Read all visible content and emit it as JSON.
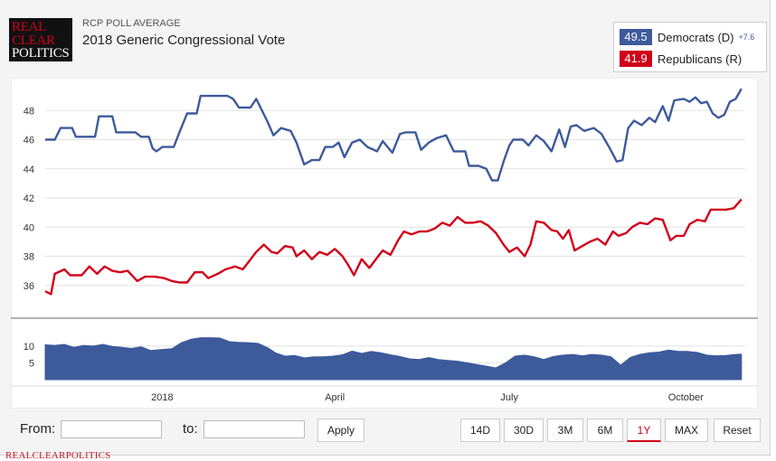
{
  "header": {
    "logo_lines": [
      "REAL",
      "CLEAR",
      "POLITICS"
    ],
    "subtitle": "RCP POLL AVERAGE",
    "title": "2018 Generic Congressional Vote"
  },
  "legend": {
    "dem_value": "49.5",
    "dem_label": "Democrats (D)",
    "dem_spread": "+7.6",
    "rep_value": "41.9",
    "rep_label": "Republicans (R)"
  },
  "colors": {
    "dem": "#3d5a9b",
    "rep": "#d0021b",
    "spread_fill": "#3d5a9b",
    "grid": "#dddddd"
  },
  "controls": {
    "from_label": "From:",
    "to_label": "to:",
    "from_value": "",
    "to_value": "",
    "apply_label": "Apply",
    "ranges": [
      "14D",
      "30D",
      "3M",
      "6M",
      "1Y",
      "MAX"
    ],
    "active_range": "1Y",
    "reset_label": "Reset"
  },
  "footer": "REALCLEARPOLITICS",
  "chart_data": {
    "type": "line",
    "x_type": "date",
    "x_range": [
      "2017-11-01",
      "2018-11-01"
    ],
    "x_ticks": [
      {
        "date": "2018-01-01",
        "label": "2018"
      },
      {
        "date": "2018-04-01",
        "label": "April"
      },
      {
        "date": "2018-07-01",
        "label": "July"
      },
      {
        "date": "2018-10-01",
        "label": "October"
      }
    ],
    "main_ylim": [
      34,
      50
    ],
    "main_yticks": [
      36,
      38,
      40,
      42,
      44,
      46,
      48
    ],
    "spread_ylim": [
      0,
      14
    ],
    "spread_yticks": [
      5,
      10
    ],
    "series": [
      {
        "name": "Democrats (D)",
        "color": "#3d5a9b",
        "points": [
          [
            "2017-11-01",
            46.0
          ],
          [
            "2017-11-06",
            46.0
          ],
          [
            "2017-11-09",
            46.8
          ],
          [
            "2017-11-15",
            46.8
          ],
          [
            "2017-11-17",
            46.2
          ],
          [
            "2017-11-27",
            46.2
          ],
          [
            "2017-11-29",
            47.6
          ],
          [
            "2017-12-06",
            47.6
          ],
          [
            "2017-12-08",
            46.5
          ],
          [
            "2017-12-18",
            46.5
          ],
          [
            "2017-12-21",
            46.2
          ],
          [
            "2017-12-25",
            46.2
          ],
          [
            "2017-12-27",
            45.4
          ],
          [
            "2017-12-29",
            45.2
          ],
          [
            "2018-01-01",
            45.5
          ],
          [
            "2018-01-07",
            45.5
          ],
          [
            "2018-01-10",
            46.5
          ],
          [
            "2018-01-14",
            47.8
          ],
          [
            "2018-01-19",
            47.8
          ],
          [
            "2018-01-21",
            49.0
          ],
          [
            "2018-02-04",
            49.0
          ],
          [
            "2018-02-07",
            48.8
          ],
          [
            "2018-02-10",
            48.2
          ],
          [
            "2018-02-16",
            48.2
          ],
          [
            "2018-02-19",
            48.8
          ],
          [
            "2018-02-25",
            47.2
          ],
          [
            "2018-02-28",
            46.3
          ],
          [
            "2018-03-04",
            46.8
          ],
          [
            "2018-03-09",
            46.6
          ],
          [
            "2018-03-12",
            45.8
          ],
          [
            "2018-03-16",
            44.3
          ],
          [
            "2018-03-20",
            44.6
          ],
          [
            "2018-03-24",
            44.6
          ],
          [
            "2018-03-27",
            45.5
          ],
          [
            "2018-03-31",
            45.5
          ],
          [
            "2018-04-03",
            45.8
          ],
          [
            "2018-04-06",
            44.8
          ],
          [
            "2018-04-10",
            45.8
          ],
          [
            "2018-04-14",
            46.0
          ],
          [
            "2018-04-18",
            45.5
          ],
          [
            "2018-04-23",
            45.2
          ],
          [
            "2018-04-26",
            45.9
          ],
          [
            "2018-05-01",
            45.1
          ],
          [
            "2018-05-05",
            46.4
          ],
          [
            "2018-05-08",
            46.5
          ],
          [
            "2018-05-13",
            46.5
          ],
          [
            "2018-05-16",
            45.3
          ],
          [
            "2018-05-20",
            45.8
          ],
          [
            "2018-05-24",
            46.1
          ],
          [
            "2018-05-29",
            46.3
          ],
          [
            "2018-06-02",
            45.2
          ],
          [
            "2018-06-08",
            45.2
          ],
          [
            "2018-06-10",
            44.2
          ],
          [
            "2018-06-15",
            44.2
          ],
          [
            "2018-06-19",
            44.0
          ],
          [
            "2018-06-22",
            43.2
          ],
          [
            "2018-06-25",
            43.2
          ],
          [
            "2018-06-28",
            44.5
          ],
          [
            "2018-07-01",
            45.6
          ],
          [
            "2018-07-03",
            46.0
          ],
          [
            "2018-07-08",
            46.0
          ],
          [
            "2018-07-11",
            45.6
          ],
          [
            "2018-07-15",
            46.3
          ],
          [
            "2018-07-19",
            45.9
          ],
          [
            "2018-07-23",
            45.2
          ],
          [
            "2018-07-27",
            46.7
          ],
          [
            "2018-07-30",
            45.5
          ],
          [
            "2018-08-02",
            46.9
          ],
          [
            "2018-08-05",
            47.0
          ],
          [
            "2018-08-09",
            46.6
          ],
          [
            "2018-08-14",
            46.8
          ],
          [
            "2018-08-18",
            46.4
          ],
          [
            "2018-08-22",
            45.5
          ],
          [
            "2018-08-26",
            44.5
          ],
          [
            "2018-08-29",
            44.6
          ],
          [
            "2018-09-01",
            46.8
          ],
          [
            "2018-09-04",
            47.3
          ],
          [
            "2018-09-08",
            47.0
          ],
          [
            "2018-09-12",
            47.5
          ],
          [
            "2018-09-15",
            47.2
          ],
          [
            "2018-09-19",
            48.3
          ],
          [
            "2018-09-22",
            47.3
          ],
          [
            "2018-09-25",
            48.7
          ],
          [
            "2018-09-30",
            48.8
          ],
          [
            "2018-10-03",
            48.6
          ],
          [
            "2018-10-06",
            48.9
          ],
          [
            "2018-10-09",
            48.5
          ],
          [
            "2018-10-12",
            48.6
          ],
          [
            "2018-10-15",
            47.8
          ],
          [
            "2018-10-18",
            47.5
          ],
          [
            "2018-10-21",
            47.7
          ],
          [
            "2018-10-24",
            48.6
          ],
          [
            "2018-10-27",
            48.8
          ],
          [
            "2018-10-30",
            49.5
          ]
        ]
      },
      {
        "name": "Republicans (R)",
        "color": "#d0021b",
        "points": [
          [
            "2017-11-01",
            35.6
          ],
          [
            "2017-11-04",
            35.4
          ],
          [
            "2017-11-06",
            36.8
          ],
          [
            "2017-11-11",
            37.1
          ],
          [
            "2017-11-14",
            36.7
          ],
          [
            "2017-11-20",
            36.7
          ],
          [
            "2017-11-24",
            37.3
          ],
          [
            "2017-11-28",
            36.8
          ],
          [
            "2017-12-02",
            37.3
          ],
          [
            "2017-12-06",
            37.0
          ],
          [
            "2017-12-10",
            36.9
          ],
          [
            "2017-12-14",
            37.0
          ],
          [
            "2017-12-19",
            36.3
          ],
          [
            "2017-12-23",
            36.6
          ],
          [
            "2017-12-28",
            36.6
          ],
          [
            "2018-01-02",
            36.5
          ],
          [
            "2018-01-06",
            36.3
          ],
          [
            "2018-01-10",
            36.2
          ],
          [
            "2018-01-14",
            36.2
          ],
          [
            "2018-01-18",
            36.9
          ],
          [
            "2018-01-22",
            36.9
          ],
          [
            "2018-01-25",
            36.5
          ],
          [
            "2018-01-30",
            36.8
          ],
          [
            "2018-02-03",
            37.1
          ],
          [
            "2018-02-08",
            37.3
          ],
          [
            "2018-02-12",
            37.1
          ],
          [
            "2018-02-15",
            37.6
          ],
          [
            "2018-02-19",
            38.3
          ],
          [
            "2018-02-23",
            38.8
          ],
          [
            "2018-02-27",
            38.3
          ],
          [
            "2018-03-02",
            38.2
          ],
          [
            "2018-03-06",
            38.7
          ],
          [
            "2018-03-10",
            38.6
          ],
          [
            "2018-03-12",
            38.0
          ],
          [
            "2018-03-16",
            38.4
          ],
          [
            "2018-03-20",
            37.8
          ],
          [
            "2018-03-24",
            38.3
          ],
          [
            "2018-03-28",
            38.1
          ],
          [
            "2018-04-01",
            38.5
          ],
          [
            "2018-04-05",
            38.0
          ],
          [
            "2018-04-08",
            37.4
          ],
          [
            "2018-04-11",
            36.7
          ],
          [
            "2018-04-15",
            37.8
          ],
          [
            "2018-04-19",
            37.2
          ],
          [
            "2018-04-23",
            37.9
          ],
          [
            "2018-04-26",
            38.4
          ],
          [
            "2018-04-30",
            38.1
          ],
          [
            "2018-05-04",
            39.1
          ],
          [
            "2018-05-07",
            39.7
          ],
          [
            "2018-05-11",
            39.5
          ],
          [
            "2018-05-15",
            39.7
          ],
          [
            "2018-05-19",
            39.7
          ],
          [
            "2018-05-23",
            39.9
          ],
          [
            "2018-05-27",
            40.3
          ],
          [
            "2018-05-31",
            40.1
          ],
          [
            "2018-06-04",
            40.7
          ],
          [
            "2018-06-08",
            40.3
          ],
          [
            "2018-06-12",
            40.3
          ],
          [
            "2018-06-16",
            40.4
          ],
          [
            "2018-06-20",
            40.1
          ],
          [
            "2018-06-24",
            39.6
          ],
          [
            "2018-06-28",
            38.8
          ],
          [
            "2018-07-01",
            38.3
          ],
          [
            "2018-07-05",
            38.6
          ],
          [
            "2018-07-09",
            38.0
          ],
          [
            "2018-07-12",
            38.8
          ],
          [
            "2018-07-15",
            40.4
          ],
          [
            "2018-07-19",
            40.3
          ],
          [
            "2018-07-23",
            39.8
          ],
          [
            "2018-07-26",
            39.7
          ],
          [
            "2018-07-29",
            39.2
          ],
          [
            "2018-08-01",
            39.8
          ],
          [
            "2018-08-04",
            38.4
          ],
          [
            "2018-08-08",
            38.7
          ],
          [
            "2018-08-12",
            39.0
          ],
          [
            "2018-08-16",
            39.2
          ],
          [
            "2018-08-20",
            38.8
          ],
          [
            "2018-08-24",
            39.7
          ],
          [
            "2018-08-27",
            39.4
          ],
          [
            "2018-08-31",
            39.6
          ],
          [
            "2018-09-03",
            40.0
          ],
          [
            "2018-09-07",
            40.3
          ],
          [
            "2018-09-11",
            40.2
          ],
          [
            "2018-09-15",
            40.6
          ],
          [
            "2018-09-19",
            40.5
          ],
          [
            "2018-09-23",
            39.1
          ],
          [
            "2018-09-26",
            39.4
          ],
          [
            "2018-09-30",
            39.4
          ],
          [
            "2018-10-03",
            40.2
          ],
          [
            "2018-10-07",
            40.5
          ],
          [
            "2018-10-11",
            40.4
          ],
          [
            "2018-10-14",
            41.2
          ],
          [
            "2018-10-18",
            41.2
          ],
          [
            "2018-10-22",
            41.2
          ],
          [
            "2018-10-26",
            41.3
          ],
          [
            "2018-10-30",
            41.9
          ]
        ]
      },
      {
        "name": "Spread",
        "color": "#3d5a9b",
        "points": [
          [
            "2017-11-01",
            10.4
          ],
          [
            "2017-11-06",
            10.2
          ],
          [
            "2017-11-11",
            10.5
          ],
          [
            "2017-11-16",
            9.6
          ],
          [
            "2017-11-21",
            10.2
          ],
          [
            "2017-11-26",
            10.0
          ],
          [
            "2017-12-01",
            10.5
          ],
          [
            "2017-12-06",
            9.9
          ],
          [
            "2017-12-11",
            9.6
          ],
          [
            "2017-12-16",
            9.3
          ],
          [
            "2017-12-21",
            9.8
          ],
          [
            "2017-12-26",
            8.7
          ],
          [
            "2018-01-01",
            9.0
          ],
          [
            "2018-01-06",
            9.2
          ],
          [
            "2018-01-11",
            11.0
          ],
          [
            "2018-01-16",
            12.0
          ],
          [
            "2018-01-21",
            12.5
          ],
          [
            "2018-01-26",
            12.5
          ],
          [
            "2018-01-31",
            12.4
          ],
          [
            "2018-02-05",
            11.3
          ],
          [
            "2018-02-10",
            11.1
          ],
          [
            "2018-02-15",
            11.0
          ],
          [
            "2018-02-20",
            10.8
          ],
          [
            "2018-02-25",
            9.5
          ],
          [
            "2018-03-01",
            8.0
          ],
          [
            "2018-03-06",
            7.0
          ],
          [
            "2018-03-11",
            7.2
          ],
          [
            "2018-03-16",
            6.5
          ],
          [
            "2018-03-21",
            6.8
          ],
          [
            "2018-03-26",
            6.8
          ],
          [
            "2018-03-31",
            7.0
          ],
          [
            "2018-04-05",
            7.4
          ],
          [
            "2018-04-10",
            8.5
          ],
          [
            "2018-04-15",
            7.8
          ],
          [
            "2018-04-20",
            8.4
          ],
          [
            "2018-04-25",
            8.0
          ],
          [
            "2018-04-30",
            7.4
          ],
          [
            "2018-05-05",
            6.9
          ],
          [
            "2018-05-10",
            6.2
          ],
          [
            "2018-05-15",
            6.0
          ],
          [
            "2018-05-20",
            6.6
          ],
          [
            "2018-05-25",
            6.0
          ],
          [
            "2018-05-30",
            5.7
          ],
          [
            "2018-06-04",
            5.5
          ],
          [
            "2018-06-09",
            5.0
          ],
          [
            "2018-06-14",
            4.5
          ],
          [
            "2018-06-19",
            4.0
          ],
          [
            "2018-06-24",
            3.5
          ],
          [
            "2018-06-29",
            5.0
          ],
          [
            "2018-07-04",
            7.0
          ],
          [
            "2018-07-09",
            7.3
          ],
          [
            "2018-07-14",
            6.8
          ],
          [
            "2018-07-19",
            6.0
          ],
          [
            "2018-07-24",
            6.9
          ],
          [
            "2018-07-29",
            7.3
          ],
          [
            "2018-08-03",
            7.5
          ],
          [
            "2018-08-08",
            7.1
          ],
          [
            "2018-08-13",
            7.5
          ],
          [
            "2018-08-18",
            7.3
          ],
          [
            "2018-08-23",
            6.8
          ],
          [
            "2018-08-28",
            4.3
          ],
          [
            "2018-09-02",
            6.6
          ],
          [
            "2018-09-07",
            7.5
          ],
          [
            "2018-09-12",
            8.0
          ],
          [
            "2018-09-17",
            8.2
          ],
          [
            "2018-09-22",
            8.8
          ],
          [
            "2018-09-27",
            8.4
          ],
          [
            "2018-10-02",
            8.4
          ],
          [
            "2018-10-07",
            8.1
          ],
          [
            "2018-10-12",
            7.3
          ],
          [
            "2018-10-17",
            7.1
          ],
          [
            "2018-10-22",
            7.2
          ],
          [
            "2018-10-27",
            7.5
          ],
          [
            "2018-10-30",
            7.6
          ]
        ]
      }
    ]
  }
}
